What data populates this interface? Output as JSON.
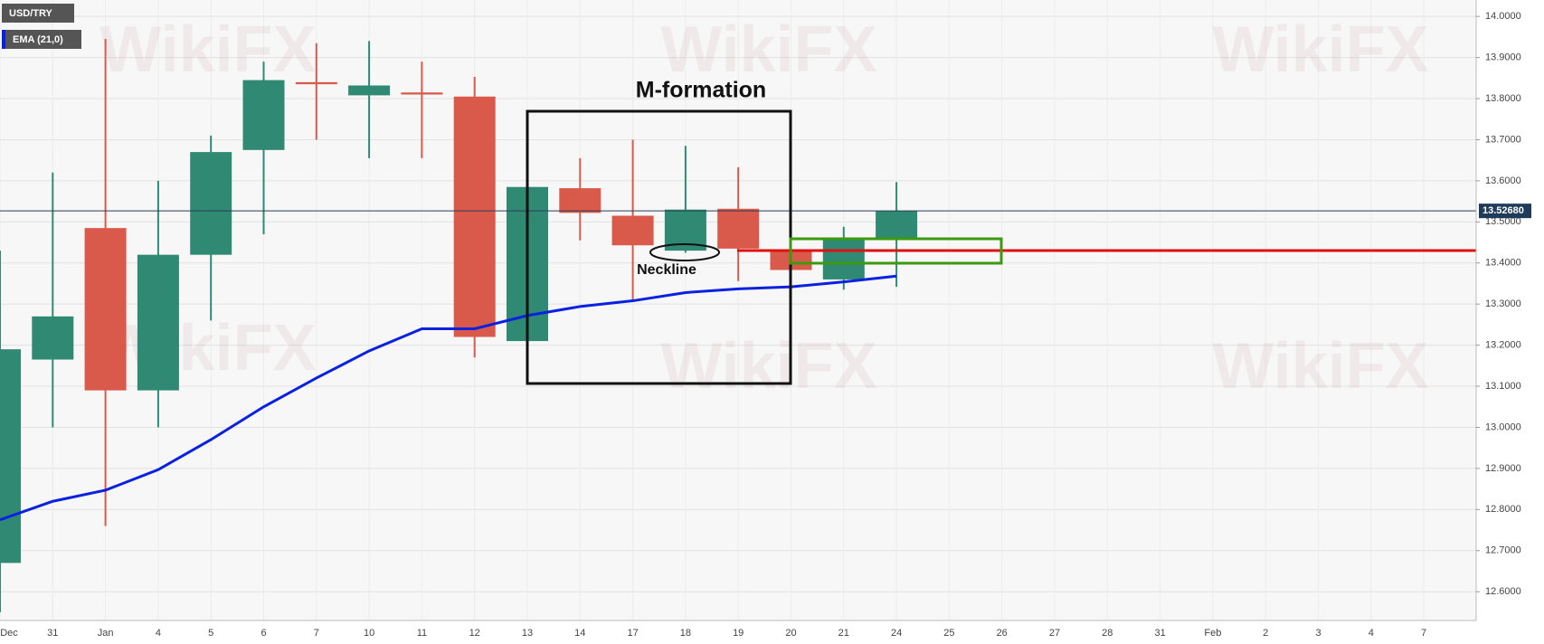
{
  "chart_data": {
    "type": "candlestick",
    "categories": [
      "Dec",
      "31",
      "Jan",
      "4",
      "5",
      "6",
      "7",
      "10",
      "11",
      "12",
      "13",
      "14",
      "17",
      "18",
      "19",
      "20",
      "21",
      "24",
      "25",
      "26",
      "27",
      "28",
      "31",
      "Feb",
      "2",
      "3",
      "4",
      "7"
    ],
    "series": [
      {
        "name": "USD/TRY",
        "type": "candlestick",
        "up_color": "#308a73",
        "down_color": "#d9594a",
        "open": [
          12.67,
          13.165,
          13.485,
          13.09,
          13.42,
          13.675,
          13.84,
          13.808,
          13.815,
          13.805,
          13.21,
          13.582,
          13.515,
          13.43,
          13.532,
          13.433,
          13.36,
          13.46,
          null,
          null,
          null,
          null,
          null,
          null,
          null,
          null,
          null,
          null
        ],
        "high": [
          13.43,
          13.62,
          13.945,
          13.6,
          13.71,
          13.89,
          13.935,
          13.94,
          13.89,
          13.853,
          13.68,
          13.655,
          13.7,
          13.685,
          13.633,
          13.56,
          13.488,
          13.597,
          null,
          null,
          null,
          null,
          null,
          null,
          null,
          null,
          null,
          null
        ],
        "low": [
          12.55,
          13.0,
          12.76,
          13.0,
          13.26,
          13.47,
          13.7,
          13.655,
          13.655,
          13.17,
          13.2,
          13.455,
          13.31,
          13.425,
          13.356,
          13.267,
          13.335,
          13.342,
          null,
          null,
          null,
          null,
          null,
          null,
          null,
          null,
          null,
          null
        ],
        "close": [
          13.19,
          13.27,
          13.09,
          13.42,
          13.67,
          13.845,
          13.835,
          13.832,
          13.81,
          13.22,
          13.585,
          13.522,
          13.443,
          13.53,
          13.435,
          13.383,
          13.46,
          13.5268,
          null,
          null,
          null,
          null,
          null,
          null,
          null,
          null,
          null,
          null
        ]
      },
      {
        "name": "EMA (21,0)",
        "type": "line",
        "color": "#0a22e0",
        "values": [
          12.775,
          12.82,
          12.847,
          12.897,
          12.97,
          13.05,
          13.12,
          13.186,
          13.24,
          13.24,
          13.272,
          13.294,
          13.308,
          13.328,
          13.337,
          13.342,
          13.354,
          13.368,
          null,
          null,
          null,
          null,
          null,
          null,
          null,
          null,
          null,
          null
        ]
      }
    ],
    "ylim": [
      12.53,
      14.04
    ],
    "yticks": [
      {
        "value": 12.6,
        "label": "12.6000"
      },
      {
        "value": 12.7,
        "label": "12.7000"
      },
      {
        "value": 12.8,
        "label": "12.8000"
      },
      {
        "value": 12.9,
        "label": "12.9000"
      },
      {
        "value": 13.0,
        "label": "13.0000"
      },
      {
        "value": 13.1,
        "label": "13.1000"
      },
      {
        "value": 13.2,
        "label": "13.2000"
      },
      {
        "value": 13.3,
        "label": "13.3000"
      },
      {
        "value": 13.4,
        "label": "13.4000"
      },
      {
        "value": 13.5,
        "label": "13.5000"
      },
      {
        "value": 13.6,
        "label": "13.6000"
      },
      {
        "value": 13.7,
        "label": "13.7000"
      },
      {
        "value": 13.8,
        "label": "13.8000"
      },
      {
        "value": 13.9,
        "label": "13.9000"
      },
      {
        "value": 14.0,
        "label": "14.0000"
      }
    ],
    "price_line": {
      "value": 13.5268,
      "label": "13.52680"
    },
    "grid": true,
    "annotations": [
      "M-formation",
      "Neckline"
    ],
    "watermark": "WikiFX"
  }
}
